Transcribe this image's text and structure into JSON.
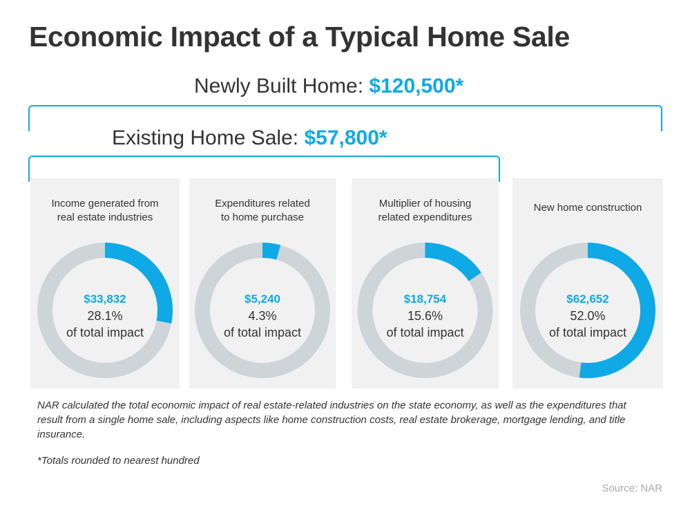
{
  "title": "Economic Impact of a Typical Home Sale",
  "brackets": {
    "new": {
      "label": "Newly Built Home: ",
      "amount": "$120,500*"
    },
    "existing": {
      "label": "Existing Home Sale: ",
      "amount": "$57,800*"
    }
  },
  "colors": {
    "accent": "#0fa9e6",
    "track": "#cdd5d9",
    "panel": "#f1f1f1"
  },
  "chart_data": [
    {
      "type": "pie",
      "label_lines": [
        "Income generated from",
        "real estate industries"
      ],
      "value_label": "$33,832",
      "percent": 28.1,
      "percent_label": "28.1%",
      "caption": "of total impact"
    },
    {
      "type": "pie",
      "label_lines": [
        "Expenditures related",
        "to home purchase"
      ],
      "value_label": "$5,240",
      "percent": 4.3,
      "percent_label": "4.3%",
      "caption": "of total impact"
    },
    {
      "type": "pie",
      "label_lines": [
        "Multiplier of housing",
        "related expenditures"
      ],
      "value_label": "$18,754",
      "percent": 15.6,
      "percent_label": "15.6%",
      "caption": "of total impact"
    },
    {
      "type": "pie",
      "label_lines": [
        "New home construction"
      ],
      "value_label": "$62,652",
      "percent": 52.0,
      "percent_label": "52.0%",
      "caption": "of total impact"
    }
  ],
  "note": "NAR calculated the total economic impact of real estate-related industries on the state economy, as well as the expenditures that result from a single home sale, including aspects like home construction costs, real estate brokerage, mortgage lending, and title insurance.",
  "footnote": "*Totals rounded to nearest hundred",
  "source": "Source: NAR"
}
